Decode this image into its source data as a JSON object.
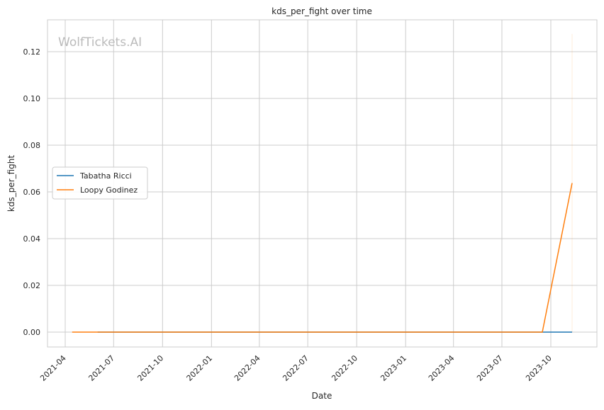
{
  "watermark": "WolfTickets.AI",
  "chart_data": {
    "type": "line",
    "title": "kds_per_fight over time",
    "xlabel": "Date",
    "ylabel": "kds_per_fight",
    "xlim": [
      "2021-02-15",
      "2023-12-15"
    ],
    "ylim": [
      -0.0065,
      0.133
    ],
    "grid": true,
    "legend_placement": "center-left",
    "xticks": [
      "2021-04",
      "2021-07",
      "2021-10",
      "2022-01",
      "2022-04",
      "2022-07",
      "2022-10",
      "2023-01",
      "2023-04",
      "2023-07",
      "2023-10"
    ],
    "yticks": [
      "0.00",
      "0.02",
      "0.04",
      "0.06",
      "0.08",
      "0.10",
      "0.12"
    ],
    "series": [
      {
        "name": "Tabatha Ricci",
        "color": "#1f77b4",
        "x": [
          "2021-06-01",
          "2023-11-10"
        ],
        "y": [
          0.0,
          0.0
        ]
      },
      {
        "name": "Loopy Godinez",
        "color": "#ff7f0e",
        "x": [
          "2021-04-14",
          "2023-09-15",
          "2023-11-10"
        ],
        "y": [
          0.0,
          0.0,
          0.0638
        ],
        "band_top": 0.1276
      }
    ]
  }
}
